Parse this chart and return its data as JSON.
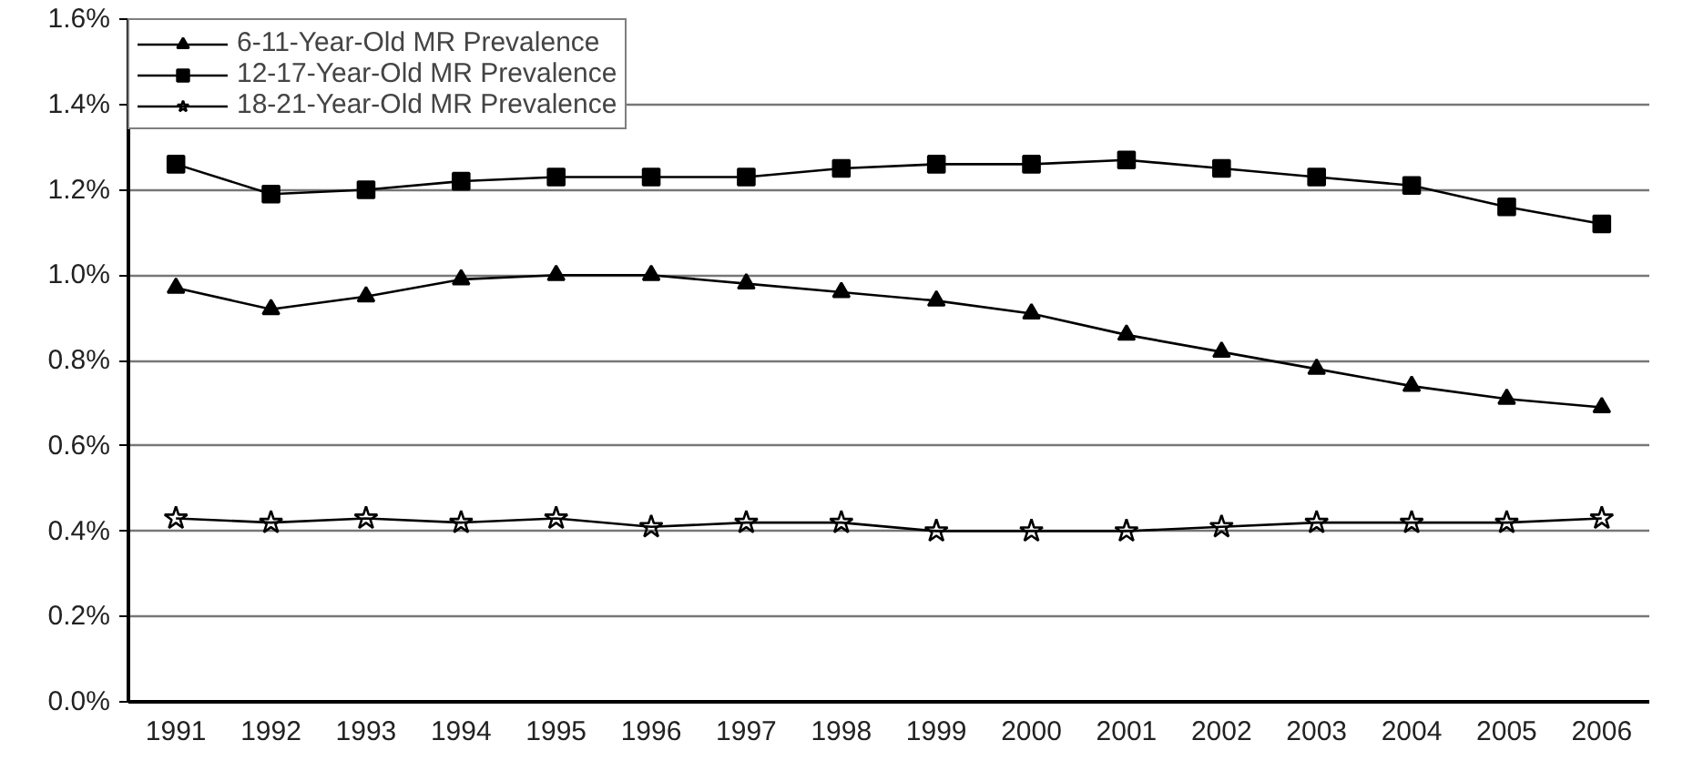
{
  "chart_data": {
    "type": "line",
    "categories": [
      "1991",
      "1992",
      "1993",
      "1994",
      "1995",
      "1996",
      "1997",
      "1998",
      "1999",
      "2000",
      "2001",
      "2002",
      "2003",
      "2004",
      "2005",
      "2006"
    ],
    "series": [
      {
        "name": "6-11-Year-Old MR Prevalence",
        "color": "#000000",
        "marker": "triangle",
        "values": [
          0.97,
          0.92,
          0.95,
          0.99,
          1.0,
          1.0,
          0.98,
          0.96,
          0.94,
          0.91,
          0.86,
          0.82,
          0.78,
          0.74,
          0.71,
          0.69
        ]
      },
      {
        "name": "12-17-Year-Old MR Prevalence",
        "color": "#000000",
        "marker": "square",
        "values": [
          1.26,
          1.19,
          1.2,
          1.22,
          1.23,
          1.23,
          1.23,
          1.25,
          1.26,
          1.26,
          1.27,
          1.25,
          1.23,
          1.21,
          1.16,
          1.12
        ]
      },
      {
        "name": "18-21-Year-Old MR Prevalence",
        "color": "#000000",
        "marker": "star",
        "values": [
          0.43,
          0.42,
          0.43,
          0.42,
          0.43,
          0.41,
          0.42,
          0.42,
          0.4,
          0.4,
          0.4,
          0.41,
          0.42,
          0.42,
          0.42,
          0.43
        ]
      }
    ],
    "ylim": [
      0,
      1.6
    ],
    "yticks": [
      {
        "value": 0,
        "label": "0.0%"
      },
      {
        "value": 0.2,
        "label": "0.2%"
      },
      {
        "value": 0.4,
        "label": "0.4%"
      },
      {
        "value": 0.6,
        "label": "0.6%"
      },
      {
        "value": 0.8,
        "label": "0.8%"
      },
      {
        "value": 1.0,
        "label": "1.0%"
      },
      {
        "value": 1.2,
        "label": "1.2%"
      },
      {
        "value": 1.4,
        "label": "1.4%"
      },
      {
        "value": 1.6,
        "label": "1.6%"
      }
    ],
    "grid": "y",
    "legend": "top left",
    "line_style": "solid"
  }
}
